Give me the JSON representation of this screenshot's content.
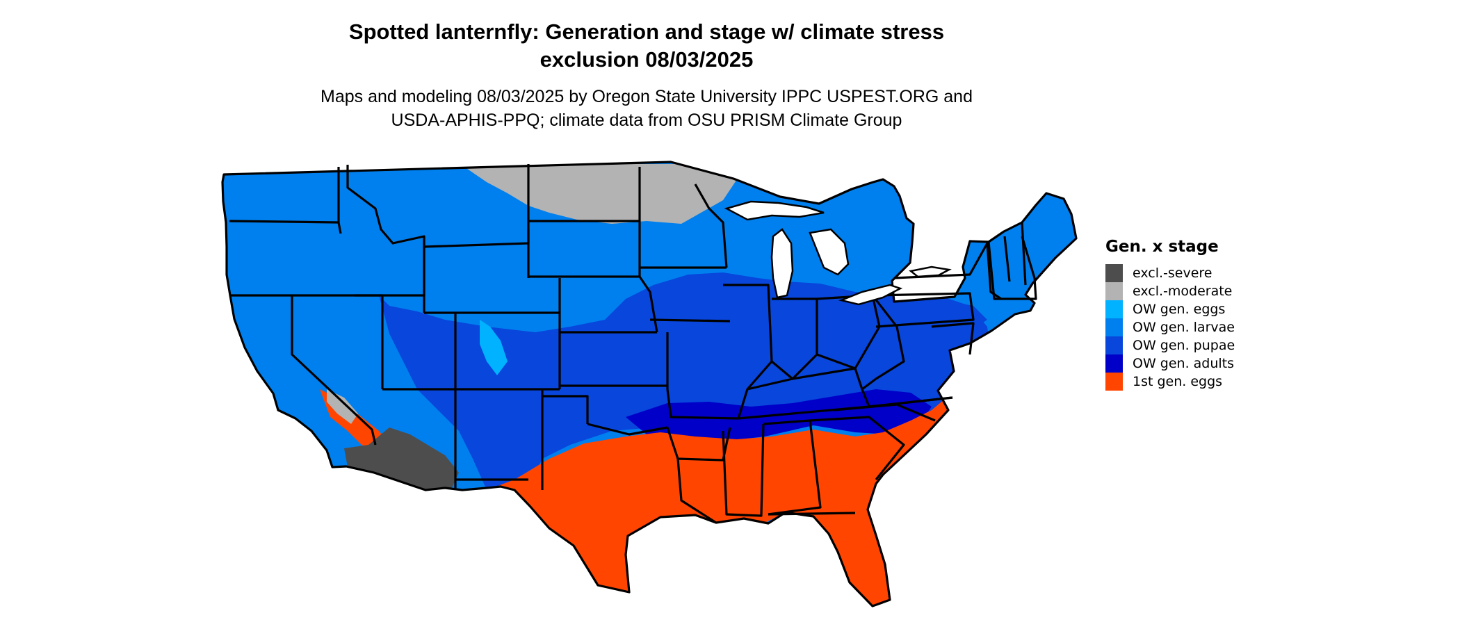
{
  "title_line1": "Spotted lanternfly: Generation and stage w/ climate stress",
  "title_line2": "exclusion 08/03/2025",
  "subtitle_line1": "Maps and modeling 08/03/2025 by Oregon State University IPPC USPEST.ORG and",
  "subtitle_line2": "USDA-APHIS-PPQ; climate data from OSU PRISM Climate Group",
  "legend": {
    "title": "Gen. x stage",
    "items": [
      {
        "label": "excl.-severe",
        "color": "#4d4d4d"
      },
      {
        "label": "excl.-moderate",
        "color": "#b3b3b3"
      },
      {
        "label": "OW gen. eggs",
        "color": "#00b2ff"
      },
      {
        "label": "OW gen. larvae",
        "color": "#0080ee"
      },
      {
        "label": "OW gen. pupae",
        "color": "#0846dc"
      },
      {
        "label": "OW gen. adults",
        "color": "#0000c8"
      },
      {
        "label": "1st gen. eggs",
        "color": "#ff4500"
      }
    ]
  }
}
